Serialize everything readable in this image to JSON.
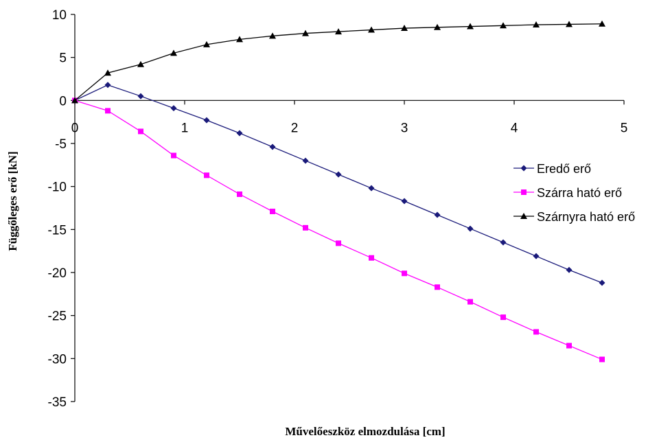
{
  "chart_data": {
    "type": "line",
    "title": "",
    "xlabel": "Művelőeszköz elmozdulása [cm]",
    "ylabel": "Függőleges erő [kN]",
    "xlim": [
      0,
      5
    ],
    "ylim": [
      -35,
      10
    ],
    "xticks": [
      0,
      1,
      2,
      3,
      4,
      5
    ],
    "yticks": [
      10,
      5,
      0,
      -5,
      -10,
      -15,
      -20,
      -25,
      -30,
      -35
    ],
    "grid": false,
    "legend_position": "right",
    "x": [
      0,
      0.3,
      0.6,
      0.9,
      1.2,
      1.5,
      1.8,
      2.1,
      2.4,
      2.7,
      3.0,
      3.3,
      3.6,
      3.9,
      4.2,
      4.5,
      4.8
    ],
    "series": [
      {
        "name": "Eredő erő",
        "color": "#1a1a7a",
        "marker": "diamond",
        "values": [
          0,
          1.8,
          0.5,
          -0.9,
          -2.3,
          -3.8,
          -5.4,
          -7.0,
          -8.6,
          -10.2,
          -11.7,
          -13.3,
          -14.9,
          -16.5,
          -18.1,
          -19.7,
          -21.2
        ]
      },
      {
        "name": "Szárra ható erő",
        "color": "#ff00ff",
        "marker": "square",
        "values": [
          0,
          -1.2,
          -3.6,
          -6.4,
          -8.7,
          -10.9,
          -12.9,
          -14.8,
          -16.6,
          -18.3,
          -20.1,
          -21.7,
          -23.4,
          -25.2,
          -26.9,
          -28.5,
          -30.1
        ]
      },
      {
        "name": "Szárnyra ható erő",
        "color": "#000000",
        "marker": "triangle",
        "values": [
          0,
          3.2,
          4.2,
          5.5,
          6.5,
          7.1,
          7.5,
          7.8,
          8.0,
          8.2,
          8.4,
          8.5,
          8.6,
          8.7,
          8.8,
          8.85,
          8.9
        ]
      }
    ]
  }
}
